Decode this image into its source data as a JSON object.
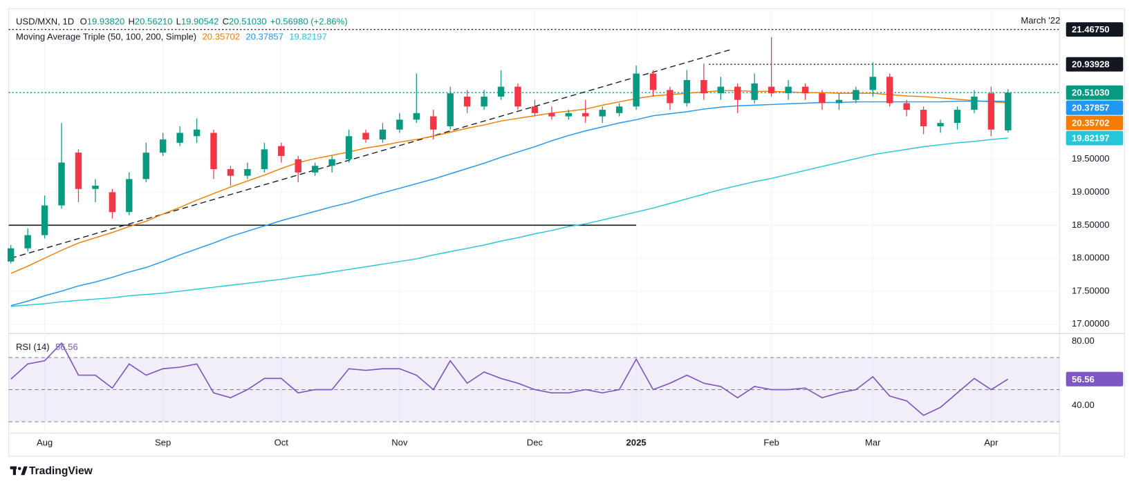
{
  "header": {
    "symbol": "USD/MXN, 1D",
    "ohlc": [
      {
        "prefix": "O",
        "label": "19.93820"
      },
      {
        "prefix": "H",
        "label": "20.56210"
      },
      {
        "prefix": "L",
        "label": "19.90542"
      },
      {
        "prefix": "C",
        "label": "20.51030"
      }
    ],
    "change": "+0.56980 (+2.86%)",
    "ma_title": "Moving Average Triple (50, 100, 200, Simple)",
    "note": "March '22"
  },
  "chart_data": [
    {
      "type": "candlestick",
      "categories": [
        null,
        null,
        "Aug",
        null,
        null,
        null,
        null,
        null,
        null,
        "Sep",
        null,
        null,
        null,
        null,
        null,
        null,
        "Oct",
        null,
        null,
        null,
        null,
        null,
        null,
        "Nov",
        null,
        null,
        null,
        null,
        null,
        null,
        null,
        "Dec",
        null,
        null,
        null,
        null,
        null,
        "2025",
        null,
        null,
        null,
        null,
        null,
        null,
        null,
        "Feb",
        null,
        null,
        null,
        null,
        null,
        "Mar",
        null,
        null,
        null,
        null,
        null,
        null,
        "Apr",
        null
      ],
      "open": [
        17.95,
        18.15,
        18.35,
        18.8,
        19.6,
        19.05,
        19.0,
        18.7,
        19.2,
        19.6,
        19.75,
        19.85,
        19.9,
        19.35,
        19.25,
        19.35,
        19.7,
        19.5,
        19.3,
        19.4,
        19.5,
        19.9,
        19.8,
        19.95,
        20.1,
        20.15,
        20.0,
        20.45,
        20.3,
        20.45,
        20.6,
        20.3,
        20.2,
        20.15,
        20.2,
        20.15,
        20.2,
        20.3,
        20.8,
        20.55,
        20.35,
        20.7,
        20.5,
        20.6,
        20.4,
        20.6,
        20.5,
        20.6,
        20.5,
        20.35,
        20.4,
        20.55,
        20.75,
        20.35,
        20.25,
        20.0,
        20.05,
        20.25,
        20.5,
        19.9382
      ],
      "high": [
        18.2,
        18.45,
        18.95,
        20.05,
        19.65,
        19.2,
        19.05,
        19.3,
        19.75,
        19.9,
        20.0,
        20.12,
        19.95,
        19.4,
        19.45,
        19.75,
        19.75,
        19.55,
        19.45,
        19.55,
        19.95,
        19.95,
        20.05,
        20.2,
        20.8,
        20.25,
        20.6,
        20.55,
        20.55,
        20.85,
        20.65,
        20.4,
        20.3,
        20.25,
        20.4,
        20.3,
        20.35,
        20.92,
        20.85,
        20.6,
        20.85,
        20.95,
        20.75,
        20.65,
        20.8,
        21.35,
        20.7,
        20.65,
        20.55,
        20.5,
        20.6,
        20.97,
        20.8,
        20.4,
        20.3,
        20.1,
        20.3,
        20.55,
        20.6,
        20.5621
      ],
      "low": [
        17.92,
        18.1,
        18.3,
        18.75,
        18.85,
        18.85,
        18.6,
        18.65,
        19.15,
        19.55,
        19.7,
        19.75,
        19.2,
        19.1,
        19.2,
        19.3,
        19.45,
        19.15,
        19.25,
        19.3,
        19.45,
        19.75,
        19.75,
        19.9,
        20.05,
        19.8,
        19.95,
        20.2,
        20.25,
        20.4,
        20.25,
        20.15,
        20.1,
        20.1,
        20.05,
        20.05,
        20.15,
        20.25,
        20.45,
        20.25,
        20.3,
        20.4,
        20.4,
        20.2,
        20.35,
        20.45,
        20.4,
        20.4,
        20.25,
        20.25,
        20.35,
        20.45,
        20.3,
        20.15,
        19.88,
        19.9,
        19.95,
        20.2,
        19.85,
        19.90542
      ],
      "close": [
        18.15,
        18.35,
        18.8,
        19.45,
        19.05,
        19.1,
        18.7,
        19.2,
        19.6,
        19.8,
        19.9,
        19.95,
        19.35,
        19.25,
        19.35,
        19.65,
        19.55,
        19.3,
        19.4,
        19.5,
        19.85,
        19.8,
        19.95,
        20.1,
        20.2,
        19.95,
        20.5,
        20.3,
        20.45,
        20.6,
        20.3,
        20.2,
        20.15,
        20.2,
        20.15,
        20.25,
        20.3,
        20.8,
        20.55,
        20.35,
        20.7,
        20.5,
        20.6,
        20.4,
        20.65,
        20.5,
        20.6,
        20.5,
        20.35,
        20.4,
        20.55,
        20.75,
        20.35,
        20.25,
        20.0,
        20.05,
        20.25,
        20.45,
        19.95,
        20.5103
      ],
      "up_color": "#089981",
      "down_color": "#f23645",
      "ylim": [
        16.88,
        21.75
      ],
      "yticks": [
        {
          "value": 17,
          "label": "17.00000"
        },
        {
          "value": 17.5,
          "label": "17.50000"
        },
        {
          "value": 18,
          "label": "18.00000"
        },
        {
          "value": 18.5,
          "label": "18.50000"
        },
        {
          "value": 19,
          "label": "19.00000"
        },
        {
          "value": 19.5,
          "label": "19.50000"
        }
      ],
      "grid": true,
      "series": [
        {
          "color": "#f57c00",
          "last_label": "20.35702",
          "values": [
            17.77,
            17.88,
            18.0,
            18.12,
            18.23,
            18.31,
            18.39,
            18.48,
            18.56,
            18.67,
            18.77,
            18.88,
            18.98,
            19.08,
            19.17,
            19.26,
            19.36,
            19.45,
            19.51,
            19.56,
            19.61,
            19.67,
            19.71,
            19.76,
            19.8,
            19.85,
            19.91,
            19.97,
            20.02,
            20.08,
            20.12,
            20.16,
            20.2,
            20.23,
            20.26,
            20.32,
            20.37,
            20.42,
            20.46,
            20.48,
            20.5,
            20.52,
            20.54,
            20.54,
            20.53,
            20.53,
            20.52,
            20.51,
            20.51,
            20.5,
            20.5,
            20.5,
            20.48,
            20.46,
            20.45,
            20.43,
            20.41,
            20.39,
            20.37,
            20.35702
          ]
        },
        {
          "color": "#2196f3",
          "last_label": "20.37857",
          "values": [
            17.28,
            17.35,
            17.43,
            17.5,
            17.58,
            17.64,
            17.71,
            17.79,
            17.86,
            17.95,
            18.05,
            18.14,
            18.23,
            18.33,
            18.41,
            18.49,
            18.57,
            18.64,
            18.71,
            18.78,
            18.84,
            18.92,
            18.99,
            19.06,
            19.13,
            19.2,
            19.28,
            19.36,
            19.44,
            19.53,
            19.61,
            19.69,
            19.78,
            19.86,
            19.93,
            19.99,
            20.05,
            20.1,
            20.16,
            20.19,
            20.22,
            20.26,
            20.29,
            20.31,
            20.32,
            20.33,
            20.34,
            20.35,
            20.36,
            20.36,
            20.37,
            20.37,
            20.37,
            20.37,
            20.37,
            20.37,
            20.38,
            20.38,
            20.38,
            20.37857
          ]
        },
        {
          "color": "#26c6da",
          "last_label": "19.82197",
          "values": [
            17.27,
            17.29,
            17.31,
            17.34,
            17.36,
            17.38,
            17.4,
            17.43,
            17.45,
            17.47,
            17.5,
            17.53,
            17.56,
            17.59,
            17.62,
            17.65,
            17.68,
            17.72,
            17.75,
            17.79,
            17.83,
            17.87,
            17.91,
            17.95,
            17.99,
            18.05,
            18.1,
            18.15,
            18.2,
            18.26,
            18.31,
            18.37,
            18.42,
            18.48,
            18.52,
            18.58,
            18.64,
            18.7,
            18.76,
            18.83,
            18.9,
            18.97,
            19.04,
            19.1,
            19.16,
            19.21,
            19.27,
            19.33,
            19.39,
            19.45,
            19.51,
            19.57,
            19.61,
            19.65,
            19.69,
            19.72,
            19.75,
            19.77,
            19.8,
            19.82197
          ]
        }
      ],
      "price_tags": [
        {
          "value": 21.4675,
          "label": "21.46750",
          "color": "#131722",
          "line": "full"
        },
        {
          "value": 20.93928,
          "label": "20.93928",
          "color": "#131722",
          "line": "partial"
        },
        {
          "value": 20.5103,
          "label": "20.51030",
          "color": "#089981",
          "line": "full"
        }
      ],
      "trendline": [
        18.0,
        21.17
      ],
      "support": 18.5
    },
    {
      "type": "line",
      "title": "RSI (14)",
      "series": [
        {
          "color": "#7e57c2",
          "last_label": "56.56",
          "values": [
            56.6,
            66,
            68,
            79,
            59,
            59,
            51,
            66,
            59,
            63,
            64,
            66,
            48,
            45,
            50,
            57,
            57,
            48,
            50,
            50,
            63,
            62,
            63,
            63,
            59,
            50,
            68,
            54,
            61,
            57,
            54,
            50,
            48,
            48,
            50,
            48,
            50,
            69,
            50,
            54,
            59,
            54,
            52,
            45,
            52,
            50,
            50,
            51,
            45,
            48,
            50,
            58,
            46,
            43,
            34,
            39,
            48,
            57,
            50,
            56.56
          ]
        }
      ],
      "ylim": [
        23.8,
        84.5
      ],
      "yticks": [
        {
          "value": 80,
          "label": "80.00"
        },
        {
          "value": 40,
          "label": "40.00"
        }
      ],
      "levels": [
        70,
        50,
        30
      ],
      "band": [
        30,
        70
      ]
    }
  ],
  "footer": {
    "brand": "TradingView"
  }
}
